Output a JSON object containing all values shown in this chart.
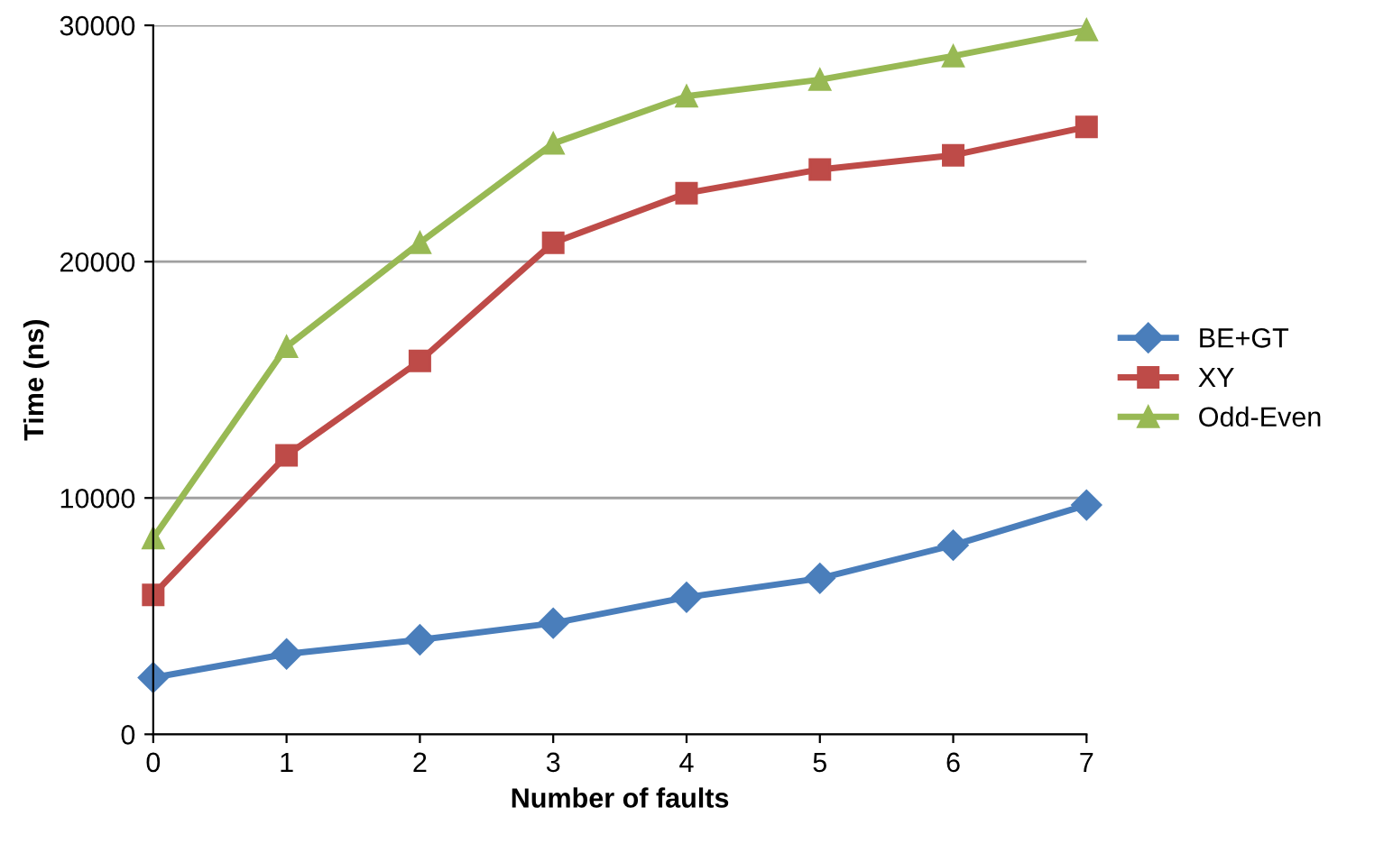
{
  "chart_data": {
    "type": "line",
    "xlabel": "Number of faults",
    "ylabel": "Time (ns)",
    "x": [
      0,
      1,
      2,
      3,
      4,
      5,
      6,
      7
    ],
    "xlim": [
      0,
      7
    ],
    "xticks": [
      0,
      1,
      2,
      3,
      4,
      5,
      6,
      7
    ],
    "ylim": [
      0,
      30000
    ],
    "yticks": [
      0,
      10000,
      20000,
      30000
    ],
    "grid": "y",
    "legend": "right",
    "line_style": "solid",
    "series": [
      {
        "name": "BE+GT",
        "color": "#4a7ebb",
        "marker": "diamond",
        "values": [
          2400,
          3400,
          4000,
          4700,
          5800,
          6600,
          8000,
          9700
        ]
      },
      {
        "name": "XY",
        "color": "#be4b48",
        "marker": "square",
        "values": [
          5900,
          11800,
          15800,
          20800,
          22900,
          23900,
          24500,
          25700
        ]
      },
      {
        "name": "Odd-Even",
        "color": "#98b954",
        "marker": "triangle",
        "values": [
          8300,
          16400,
          20800,
          25000,
          27000,
          27700,
          28700,
          29800
        ]
      }
    ]
  }
}
